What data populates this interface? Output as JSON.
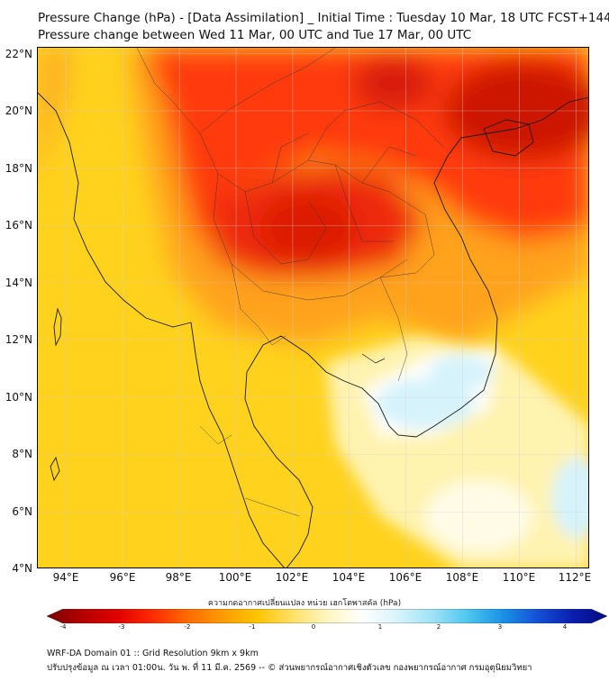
{
  "title_line1": "Pressure Change (hPa) - [Data Assimilation] _ Initial Time : Tuesday 10 Mar, 18 UTC FCST+144",
  "title_line2": "Pressure change between Wed 11 Mar, 00 UTC and Tue 17 Mar, 00 UTC",
  "lat_labels": [
    "22°N",
    "20°N",
    "18°N",
    "16°N",
    "14°N",
    "12°N",
    "10°N",
    "8°N",
    "6°N",
    "4°N"
  ],
  "lon_labels": [
    "94°E",
    "96°E",
    "98°E",
    "100°E",
    "102°E",
    "104°E",
    "106°E",
    "108°E",
    "110°E",
    "112°E"
  ],
  "extent": {
    "lon_min": 93,
    "lon_max": 112.5,
    "lat_min": 4,
    "lat_max": 22.2
  },
  "colorbar": {
    "title": "ความกดอากาศเปลี่ยนแปลง หน่วย เฮกโตพาสคัล (hPa)",
    "tick_labels": [
      "-4",
      "-3",
      "-2",
      "-1",
      "0",
      "1",
      "2",
      "3",
      "4"
    ],
    "range": [
      -4.5,
      4.5
    ],
    "colors": [
      "#7a0000",
      "#b30000",
      "#e00000",
      "#ff2a00",
      "#ff6a00",
      "#ff9a00",
      "#ffc400",
      "#ffe066",
      "#fff5c0",
      "#ffffff",
      "#d8f4fb",
      "#9fe3f6",
      "#4fc7ef",
      "#1a93e6",
      "#1450d6",
      "#0a1fb0",
      "#050a80"
    ]
  },
  "footer_line1": "WRF-DA Domain 01 :: Grid Resolution 9km x 9km",
  "footer_line2": "ปรับปรุงข้อมูล ณ เวลา 01:00น. วัน พ. ที่ 11 มี.ค. 2569 -- © ส่วนพยากรณ์อากาศเชิงตัวเลข กองพยากรณ์อากาศ กรมอุตุนิยมวิทยา"
}
